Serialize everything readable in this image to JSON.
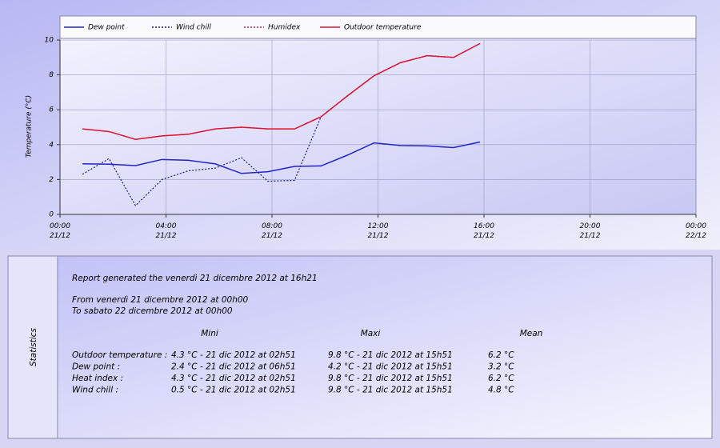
{
  "chart_data": {
    "type": "line",
    "ylabel": "Temperature (°C)",
    "x": [
      0.85,
      1.85,
      2.85,
      3.85,
      4.85,
      5.85,
      6.85,
      7.85,
      8.85,
      9.85,
      10.85,
      11.85,
      12.85,
      13.85,
      14.85,
      15.85
    ],
    "series": [
      {
        "name": "Dew point",
        "color": "#2323c8",
        "style": "solid",
        "values": [
          2.9,
          2.88,
          2.8,
          3.15,
          3.1,
          2.9,
          2.35,
          2.45,
          2.75,
          2.78,
          3.4,
          4.1,
          3.95,
          3.93,
          3.83,
          4.15
        ]
      },
      {
        "name": "Wind chill",
        "color": "#1a1a8c",
        "style": "dotted",
        "values": [
          2.3,
          3.2,
          0.5,
          2.0,
          2.5,
          2.65,
          3.25,
          1.9,
          1.95,
          5.6,
          6.8,
          7.95,
          8.7,
          9.1,
          9.0,
          9.8
        ]
      },
      {
        "name": "Humidex",
        "color": "#c81e3c",
        "style": "dotted",
        "values": [
          4.9,
          4.75,
          4.3,
          4.5,
          4.6,
          4.9,
          5.0,
          4.9,
          4.9,
          5.6,
          6.8,
          7.95,
          8.7,
          9.1,
          9.0,
          9.8
        ]
      },
      {
        "name": "Outdoor temperature",
        "color": "#dc1432",
        "style": "solid",
        "values": [
          4.9,
          4.75,
          4.3,
          4.5,
          4.6,
          4.9,
          5.0,
          4.9,
          4.9,
          5.6,
          6.8,
          7.95,
          8.7,
          9.1,
          9.0,
          9.8
        ]
      }
    ],
    "xlim": [
      0,
      24
    ],
    "xticks": [
      {
        "value": 0,
        "label": "00:00 21/12"
      },
      {
        "value": 4,
        "label": "04:00 21/12"
      },
      {
        "value": 8,
        "label": "08:00 21/12"
      },
      {
        "value": 12,
        "label": "12:00 21/12"
      },
      {
        "value": 16,
        "label": "16:00 21/12"
      },
      {
        "value": 20,
        "label": "20:00 21/12"
      },
      {
        "value": 24,
        "label": "00:00 22/12"
      }
    ],
    "ylim": [
      0,
      10
    ],
    "yticks": [
      0,
      2,
      4,
      6,
      8,
      10
    ],
    "grid": true
  },
  "report": {
    "side_label": "Statistics",
    "generated": "Report generated the venerdì 21 dicembre 2012 at 16h21",
    "from": "From venerdì 21 dicembre 2012 at 00h00",
    "to": "To sabato 22 dicembre 2012 at 00h00",
    "headers": [
      "Mini",
      "Maxi",
      "Mean"
    ],
    "rows": [
      [
        "Outdoor temperature :",
        "4.3 °C - 21 dic 2012 at 02h51",
        "9.8 °C - 21 dic 2012 at 15h51",
        "6.2 °C"
      ],
      [
        "Dew point :",
        "2.4 °C - 21 dic 2012 at 06h51",
        "4.2 °C - 21 dic 2012 at 15h51",
        "3.2 °C"
      ],
      [
        "Heat index :",
        "4.3 °C - 21 dic 2012 at 02h51",
        "9.8 °C - 21 dic 2012 at 15h51",
        "6.2 °C"
      ],
      [
        "Wind chill :",
        "0.5 °C - 21 dic 2012 at 02h51",
        "9.8 °C - 21 dic 2012 at 15h51",
        "4.8 °C"
      ]
    ]
  }
}
